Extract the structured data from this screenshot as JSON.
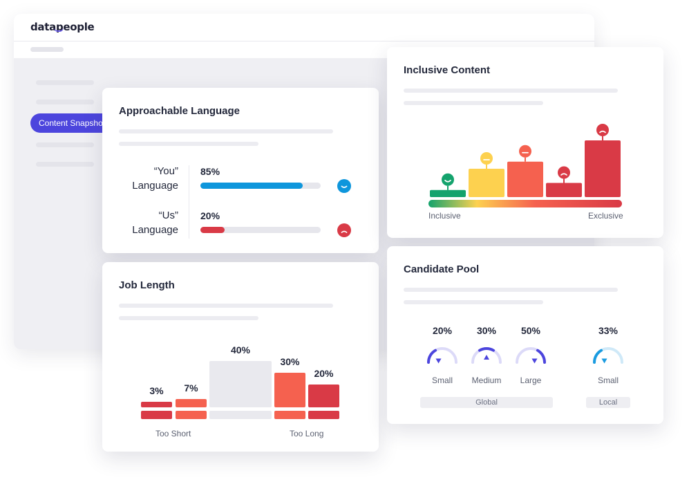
{
  "app": {
    "logo": "datapeople",
    "nav_active": "Content Snapshot",
    "accent": "#4c45dd"
  },
  "approachable": {
    "title": "Approachable Language",
    "rows": [
      {
        "label_line1": "“You”",
        "label_line2": "Language",
        "percent": "85%",
        "value": 0.85,
        "color": "#0e96dc",
        "face": "happy"
      },
      {
        "label_line1": "“Us”",
        "label_line2": "Language",
        "percent": "20%",
        "value": 0.2,
        "color": "#d93a46",
        "face": "sad"
      }
    ]
  },
  "job_length": {
    "title": "Job Length",
    "left_axis": "Too Short",
    "right_axis": "Too Long"
  },
  "inclusive": {
    "title": "Inclusive Content",
    "left_axis": "Inclusive",
    "right_axis": "Exclusive"
  },
  "candidate_pool": {
    "title": "Candidate Pool",
    "gauges": [
      {
        "percent": "20%",
        "label": "Small",
        "level": "low",
        "color": "#4c45dd"
      },
      {
        "percent": "30%",
        "label": "Medium",
        "level": "medium",
        "color": "#4c45dd"
      },
      {
        "percent": "50%",
        "label": "Large",
        "level": "high",
        "color": "#4c45dd"
      },
      {
        "percent": "33%",
        "label": "Small",
        "level": "low",
        "color": "#1a9be0"
      }
    ],
    "group_global": "Global",
    "group_local": "Local"
  },
  "chart_data": [
    {
      "type": "bar",
      "chart": "job_length",
      "categories": [
        "",
        "",
        "",
        "",
        ""
      ],
      "values": [
        3,
        7,
        40,
        30,
        20
      ],
      "labels": [
        "3%",
        "7%",
        "40%",
        "30%",
        "20%"
      ],
      "colors": [
        "#d93a46",
        "#f5614f",
        "#e9e9ee",
        "#f5614f",
        "#d93a46"
      ],
      "xlabel_left": "Too Short",
      "xlabel_right": "Too Long"
    },
    {
      "type": "bar",
      "chart": "inclusive_content",
      "categories": [
        "",
        "",
        "",
        "",
        ""
      ],
      "values": [
        1,
        4,
        5,
        2,
        8
      ],
      "colors": [
        "#14a36d",
        "#fdd14f",
        "#f5614f",
        "#d93a46",
        "#d93a46"
      ],
      "faces": [
        "happy",
        "neutral",
        "neutral",
        "sad",
        "sad"
      ],
      "xlabel_left": "Inclusive",
      "xlabel_right": "Exclusive"
    }
  ]
}
